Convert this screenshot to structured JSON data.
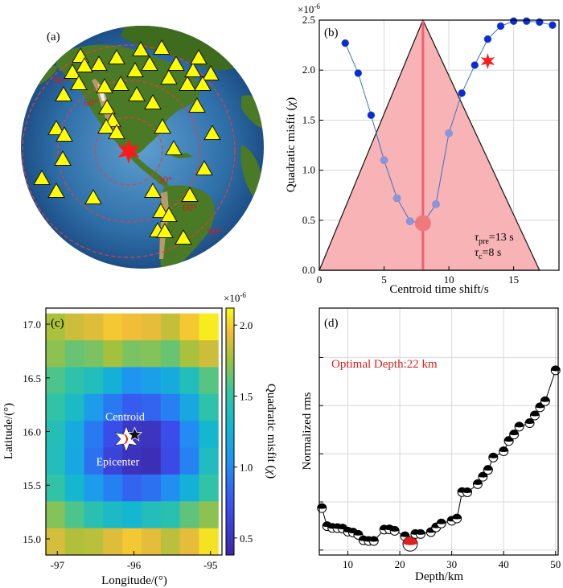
{
  "colors": {
    "accent_red": "#ff1a1a",
    "pink_fill": "#f7b3b6",
    "dark_blue": "#0d2bd1",
    "light_blue": "#8a96d8",
    "ocean": "#2f6fa8",
    "land": "#3f6b1f",
    "triangle": "#ffff00"
  },
  "chart_data": [
    {
      "panel": "a",
      "type": "map",
      "label": "(a)",
      "ring_labels": [
        "30°",
        "60°",
        "90°",
        "30°",
        "60°",
        "90°"
      ],
      "station_symbol": "triangle",
      "epicenter_symbol": "star"
    },
    {
      "panel": "b",
      "type": "scatter",
      "label": "(b)",
      "xlabel": "Centroid time shift/s",
      "ylabel_prefix": "Quadratic misfit (",
      "ylabel_var": "χ",
      "ylabel_suffix": ")",
      "multiplier": "×10",
      "multiplier_exp": "-6",
      "xlim": [
        0,
        18.5
      ],
      "ylim": [
        0,
        2.5
      ],
      "xticks": [
        "0",
        "5",
        "10",
        "15"
      ],
      "yticks": [
        "0.0",
        "0.5",
        "1.0",
        "1.5",
        "2.0",
        "2.5"
      ],
      "series": [
        {
          "name": "outside",
          "x": [
            2,
            3,
            4,
            11,
            12,
            13,
            14,
            15,
            16,
            17,
            18
          ],
          "y": [
            2.27,
            1.97,
            1.55,
            1.77,
            2.05,
            2.31,
            2.44,
            2.49,
            2.49,
            2.48,
            2.45
          ]
        },
        {
          "name": "inside",
          "x": [
            5,
            6,
            7,
            9,
            10
          ],
          "y": [
            1.1,
            0.72,
            0.49,
            0.66,
            1.37
          ]
        }
      ],
      "optimum": {
        "x": 8,
        "y": 0.47
      },
      "star": {
        "x": 13,
        "y": 2.09
      },
      "triangle": {
        "x0": 0,
        "apex_x": 8,
        "apex_y": 2.5,
        "x1": 17
      },
      "vline_x": 8,
      "annotations": [
        {
          "var": "τ",
          "sub": "pre",
          "text": "=13 s"
        },
        {
          "var": "τ",
          "sub": "c",
          "text": "=8 s"
        }
      ]
    },
    {
      "panel": "c",
      "type": "heatmap",
      "label": "(c)",
      "xlabel": "Longitude/(°)",
      "ylabel": "Latitude/(°)",
      "xlim": [
        -97.15,
        -94.85
      ],
      "ylim": [
        14.85,
        17.15
      ],
      "xticks": [
        "-97",
        "-96",
        "-95"
      ],
      "yticks": [
        "15.0",
        "15.5",
        "16.0",
        "16.5",
        "17.0"
      ],
      "grid_lon_min": -97.15,
      "grid_lat_min": 14.85,
      "cell_size": 0.25,
      "ncols": 9,
      "nrows": 9,
      "values": [
        [
          1.78,
          1.86,
          1.9,
          1.98,
          1.95,
          1.92,
          1.84,
          1.98,
          2.08
        ],
        [
          1.72,
          1.64,
          1.68,
          1.77,
          1.68,
          1.7,
          1.64,
          1.78,
          1.86
        ],
        [
          1.58,
          1.48,
          1.4,
          1.24,
          1.05,
          1.12,
          1.2,
          1.4,
          1.6
        ],
        [
          1.5,
          1.35,
          1.1,
          0.92,
          0.78,
          0.82,
          0.95,
          1.18,
          1.48
        ],
        [
          1.42,
          1.2,
          0.92,
          0.7,
          0.52,
          0.5,
          0.7,
          1.0,
          1.3
        ],
        [
          1.4,
          1.18,
          0.88,
          0.62,
          0.48,
          0.45,
          0.68,
          0.96,
          1.38
        ],
        [
          1.5,
          1.3,
          1.1,
          0.95,
          0.82,
          0.88,
          1.02,
          1.24,
          1.5
        ],
        [
          1.7,
          1.58,
          1.45,
          1.35,
          1.3,
          1.4,
          1.45,
          1.62,
          1.72
        ],
        [
          1.88,
          1.8,
          1.82,
          1.9,
          1.98,
          1.92,
          1.82,
          1.92,
          2.05
        ]
      ],
      "colorbar": {
        "label_prefix": "Quadratic misfit (",
        "label_var": "χ",
        "label_suffix": ")",
        "multiplier": "×10",
        "multiplier_exp": "-6",
        "vmin": 0.38,
        "vmax": 2.12,
        "ticks": [
          0.5,
          1.0,
          1.5,
          2.0
        ],
        "tick_labels": [
          "0.5",
          "1.0",
          "1.5",
          "2.0"
        ]
      },
      "centroid": {
        "lon": -95.99,
        "lat": 15.97,
        "label": "Centroid"
      },
      "epicenter": {
        "lon": -96.1,
        "lat": 15.93,
        "label": "Epicenter"
      }
    },
    {
      "panel": "d",
      "type": "line",
      "label": "(d)",
      "xlabel": "Depth/km",
      "ylabel": "Normalized rms",
      "xlim": [
        4.5,
        50.5
      ],
      "ylim": [
        0,
        1
      ],
      "xticks": [
        "10",
        "20",
        "30",
        "40",
        "50"
      ],
      "annotation": "Optimal Depth:22 km",
      "x": [
        5,
        6,
        7,
        8,
        9,
        10,
        11,
        12,
        13,
        14,
        15,
        17,
        18,
        19,
        21,
        22,
        23,
        24,
        26,
        27,
        28,
        30,
        31,
        32,
        33,
        35,
        36,
        37,
        38,
        40,
        41,
        42,
        43,
        45,
        46,
        47,
        48,
        50
      ],
      "values": [
        0.19,
        0.117,
        0.11,
        0.109,
        0.107,
        0.095,
        0.091,
        0.082,
        0.06,
        0.057,
        0.057,
        0.103,
        0.104,
        0.098,
        0.076,
        0.045,
        0.085,
        0.085,
        0.093,
        0.112,
        0.128,
        0.139,
        0.148,
        0.255,
        0.254,
        0.287,
        0.317,
        0.345,
        0.395,
        0.42,
        0.462,
        0.488,
        0.52,
        0.534,
        0.565,
        0.598,
        0.623,
        0.748
      ],
      "optimal": {
        "x": 22,
        "y": 0.045
      }
    }
  ]
}
